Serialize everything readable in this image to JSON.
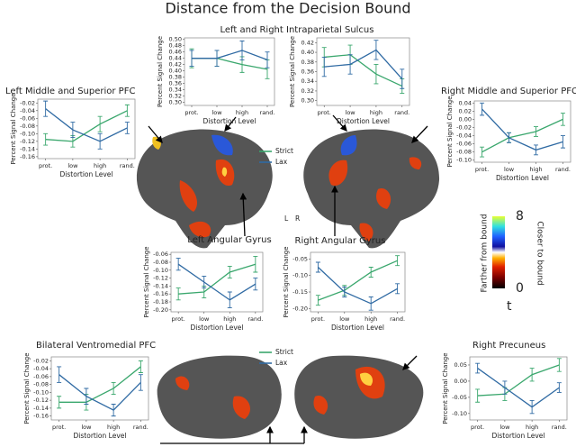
{
  "title": "Distance from the Decision Bound",
  "hemispheres": [
    "L",
    "R"
  ],
  "colorbar": {
    "lim": [
      0,
      8
    ],
    "ticks": [
      8,
      0
    ],
    "symbol": "t",
    "low_label": "Farther from bound",
    "high_label": "Closer to bound"
  },
  "chart_data": [
    {
      "type": "line",
      "title": "Left and Right Intraparietal Sulcus",
      "xlabel": "Distortion Level",
      "ylabel": "Percent Signal Change",
      "categories": [
        "prot.",
        "low",
        "high",
        "rand."
      ],
      "ylim": [
        0.29,
        0.505
      ],
      "yticks": [
        {
          "value": 0.3,
          "label": "0.30"
        },
        0.32,
        0.34,
        0.36,
        0.38,
        {
          "value": 0.4,
          "label": "0.40"
        },
        0.42,
        0.44,
        0.46,
        0.48,
        {
          "value": 0.5,
          "label": "0.50"
        }
      ],
      "series": [
        {
          "name": "Strict",
          "color": "#3aa76d",
          "values": [
            0.44,
            0.44,
            0.42,
            0.405
          ],
          "errors": [
            0.03,
            0.025,
            0.025,
            0.03
          ]
        },
        {
          "name": "Lax",
          "color": "#2f6aa3",
          "values": [
            0.44,
            0.44,
            0.465,
            0.435
          ],
          "errors": [
            0.025,
            0.025,
            0.03,
            0.025
          ]
        }
      ]
    },
    {
      "type": "line",
      "xlabel": "Distortion Level",
      "ylabel": "Percent Signal Change",
      "categories": [
        "prot.",
        "low",
        "high",
        "rand."
      ],
      "ylim": [
        0.29,
        0.43
      ],
      "yticks": [
        {
          "value": 0.3,
          "label": "0.30"
        },
        0.32,
        0.34,
        0.36,
        0.38,
        {
          "value": 0.4,
          "label": "0.40"
        },
        0.42
      ],
      "series": [
        {
          "color": "#3aa76d",
          "values": [
            0.39,
            0.395,
            0.355,
            0.33
          ],
          "errors": [
            0.02,
            0.02,
            0.02,
            0.015
          ]
        },
        {
          "color": "#2f6aa3",
          "values": [
            0.37,
            0.375,
            0.405,
            0.345
          ],
          "errors": [
            0.02,
            0.02,
            0.02,
            0.02
          ]
        }
      ]
    },
    {
      "type": "line",
      "title": "Left  Middle and Superior PFC",
      "xlabel": "Distortion Level",
      "ylabel": "Percent Signal Change",
      "categories": [
        "prot.",
        "low",
        "high",
        "rand."
      ],
      "ylim": [
        -0.165,
        -0.01
      ],
      "yticks": [
        -0.16,
        -0.14,
        -0.12,
        {
          "value": -0.1,
          "label": "-0.10"
        },
        -0.08,
        -0.06,
        -0.04,
        -0.02
      ],
      "series": [
        {
          "color": "#3aa76d",
          "values": [
            -0.115,
            -0.12,
            -0.075,
            -0.04
          ],
          "errors": [
            0.015,
            0.015,
            0.02,
            0.015
          ]
        },
        {
          "color": "#2f6aa3",
          "values": [
            -0.035,
            -0.09,
            -0.12,
            -0.085
          ],
          "errors": [
            0.02,
            0.02,
            0.02,
            0.015
          ]
        }
      ]
    },
    {
      "type": "line",
      "title": "Right Middle and Superior PFC",
      "xlabel": "Distortion Level",
      "ylabel": "Percent Signal Change",
      "categories": [
        "prot.",
        "low",
        "high",
        "rand."
      ],
      "ylim": [
        -0.105,
        0.045
      ],
      "yticks": [
        {
          "value": -0.1,
          "label": "-0.10"
        },
        -0.08,
        -0.06,
        -0.04,
        -0.02,
        {
          "value": 0,
          "label": "0.00"
        },
        0.02,
        0.04
      ],
      "series": [
        {
          "color": "#3aa76d",
          "values": [
            -0.08,
            -0.045,
            -0.03,
            0.0
          ],
          "errors": [
            0.012,
            0.012,
            0.012,
            0.015
          ]
        },
        {
          "color": "#2f6aa3",
          "values": [
            0.025,
            -0.045,
            -0.075,
            -0.055
          ],
          "errors": [
            0.015,
            0.012,
            0.012,
            0.015
          ]
        }
      ]
    },
    {
      "type": "line",
      "title": "Left Angular Gyrus",
      "xlabel": "Distortion Level",
      "ylabel": "Percent Signal Change",
      "categories": [
        "prot.",
        "low",
        "high",
        "rand."
      ],
      "ylim": [
        -0.205,
        -0.055
      ],
      "yticks": [
        {
          "value": -0.2,
          "label": "-0.20"
        },
        -0.18,
        -0.16,
        -0.14,
        -0.12,
        {
          "value": -0.1,
          "label": "-0.10"
        },
        -0.08,
        -0.06
      ],
      "series": [
        {
          "color": "#3aa76d",
          "values": [
            -0.16,
            -0.155,
            -0.105,
            -0.085
          ],
          "errors": [
            0.015,
            0.015,
            0.015,
            0.02
          ]
        },
        {
          "color": "#2f6aa3",
          "values": [
            -0.085,
            -0.13,
            -0.175,
            -0.135
          ],
          "errors": [
            0.015,
            0.015,
            0.02,
            0.015
          ]
        }
      ]
    },
    {
      "type": "line",
      "title": "Right Angular Gyrus",
      "xlabel": "Distortion Level",
      "ylabel": "Percent Signal Change",
      "categories": [
        "prot.",
        "low",
        "high",
        "rand."
      ],
      "ylim": [
        -0.21,
        -0.03
      ],
      "yticks": [
        {
          "value": -0.2,
          "label": "-0.20"
        },
        -0.15,
        {
          "value": -0.1,
          "label": "-0.10"
        },
        -0.05
      ],
      "series": [
        {
          "color": "#3aa76d",
          "values": [
            -0.175,
            -0.145,
            -0.09,
            -0.055
          ],
          "errors": [
            0.015,
            0.015,
            0.015,
            0.015
          ]
        },
        {
          "color": "#2f6aa3",
          "values": [
            -0.075,
            -0.15,
            -0.185,
            -0.14
          ],
          "errors": [
            0.015,
            0.015,
            0.02,
            0.015
          ]
        }
      ]
    },
    {
      "type": "line",
      "title": "Bilateral Ventromedial PFC",
      "xlabel": "Distortion Level",
      "ylabel": "Percent Signal Change",
      "categories": [
        "prot.",
        "low",
        "high",
        "rand."
      ],
      "ylim": [
        -0.17,
        -0.01
      ],
      "yticks": [
        -0.16,
        -0.14,
        -0.12,
        {
          "value": -0.1,
          "label": "-0.10"
        },
        -0.08,
        -0.06,
        -0.04,
        -0.02
      ],
      "series": [
        {
          "name": "Strict",
          "color": "#3aa76d",
          "values": [
            -0.125,
            -0.125,
            -0.09,
            -0.035
          ],
          "errors": [
            0.015,
            0.02,
            0.015,
            0.015
          ]
        },
        {
          "name": "Lax",
          "color": "#2f6aa3",
          "values": [
            -0.055,
            -0.11,
            -0.145,
            -0.075
          ],
          "errors": [
            0.02,
            0.02,
            0.015,
            0.02
          ]
        }
      ]
    },
    {
      "type": "line",
      "title": "Right Precuneus",
      "xlabel": "Distortion Level",
      "ylabel": "Percent Signal Change",
      "categories": [
        "prot.",
        "low",
        "high",
        "rand."
      ],
      "ylim": [
        -0.12,
        0.075
      ],
      "yticks": [
        {
          "value": -0.1,
          "label": "-0.10"
        },
        -0.05,
        {
          "value": 0,
          "label": "0.00"
        },
        0.05
      ],
      "series": [
        {
          "color": "#3aa76d",
          "values": [
            -0.045,
            -0.04,
            0.02,
            0.05
          ],
          "errors": [
            0.02,
            0.02,
            0.02,
            0.02
          ]
        },
        {
          "color": "#2f6aa3",
          "values": [
            0.04,
            -0.02,
            -0.08,
            -0.02
          ],
          "errors": [
            0.015,
            0.02,
            0.02,
            0.015
          ]
        }
      ]
    }
  ]
}
